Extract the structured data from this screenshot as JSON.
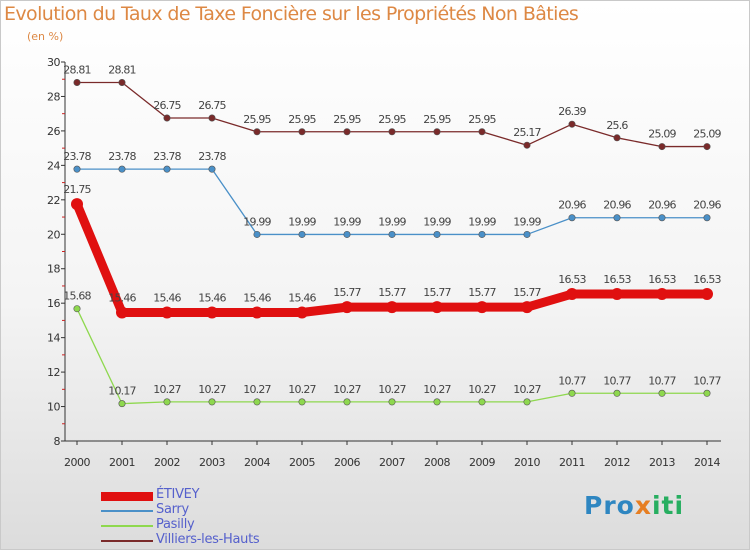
{
  "title": "Evolution du Taux de Taxe Foncière sur les Propriétés Non Bâties",
  "subtitle": "(en %)",
  "logo": {
    "part1": "Pro",
    "part2": "x",
    "part3": "iti"
  },
  "chart_data": {
    "type": "line",
    "title": "Evolution du Taux de Taxe Foncière sur les Propriétés Non Bâties",
    "ylabel": "(en %)",
    "xlabel": "",
    "ylim": [
      8,
      30
    ],
    "yticks": [
      8,
      10,
      12,
      14,
      16,
      18,
      20,
      22,
      24,
      26,
      28,
      30
    ],
    "x": [
      "2000",
      "2001",
      "2002",
      "2003",
      "2004",
      "2005",
      "2006",
      "2007",
      "2008",
      "2009",
      "2010",
      "2011",
      "2012",
      "2013",
      "2014"
    ],
    "legend_position": "bottom-left",
    "grid": false,
    "series": [
      {
        "name": "ÉTIVEY",
        "color": "#e01010",
        "emphasis": true,
        "values": [
          21.75,
          15.46,
          15.46,
          15.46,
          15.46,
          15.46,
          15.77,
          15.77,
          15.77,
          15.77,
          15.77,
          16.53,
          16.53,
          16.53,
          16.53
        ],
        "labels": [
          "21.75",
          "15.46",
          "15.46",
          "15.46",
          "15.46",
          "15.46",
          "15.77",
          "15.77",
          "15.77",
          "15.77",
          "15.77",
          "16.53",
          "16.53",
          "16.53",
          "16.53"
        ]
      },
      {
        "name": "Sarry",
        "color": "#4a90c8",
        "emphasis": false,
        "values": [
          23.78,
          23.78,
          23.78,
          23.78,
          19.99,
          19.99,
          19.99,
          19.99,
          19.99,
          19.99,
          19.99,
          20.96,
          20.96,
          20.96,
          20.96
        ],
        "labels": [
          "23.78",
          "23.78",
          "23.78",
          "23.78",
          "19.99",
          "19.99",
          "19.99",
          "19.99",
          "19.99",
          "19.99",
          "19.99",
          "20.96",
          "20.96",
          "20.96",
          "20.96"
        ]
      },
      {
        "name": "Pasilly",
        "color": "#8ed84e",
        "emphasis": false,
        "values": [
          15.68,
          10.17,
          10.27,
          10.27,
          10.27,
          10.27,
          10.27,
          10.27,
          10.27,
          10.27,
          10.27,
          10.77,
          10.77,
          10.77,
          10.77
        ],
        "labels": [
          "15.68",
          "10.17",
          "10.27",
          "10.27",
          "10.27",
          "10.27",
          "10.27",
          "10.27",
          "10.27",
          "10.27",
          "10.27",
          "10.77",
          "10.77",
          "10.77",
          "10.77"
        ]
      },
      {
        "name": "Villiers-les-Hauts",
        "color": "#7a2a2a",
        "emphasis": false,
        "values": [
          28.81,
          28.81,
          26.75,
          26.75,
          25.95,
          25.95,
          25.95,
          25.95,
          25.95,
          25.95,
          25.17,
          26.39,
          25.6,
          25.09,
          25.09
        ],
        "labels": [
          "28.81",
          "28.81",
          "26.75",
          "26.75",
          "25.95",
          "25.95",
          "25.95",
          "25.95",
          "25.95",
          "25.95",
          "25.17",
          "26.39",
          "25.6",
          "25.09",
          "25.09"
        ]
      }
    ]
  }
}
